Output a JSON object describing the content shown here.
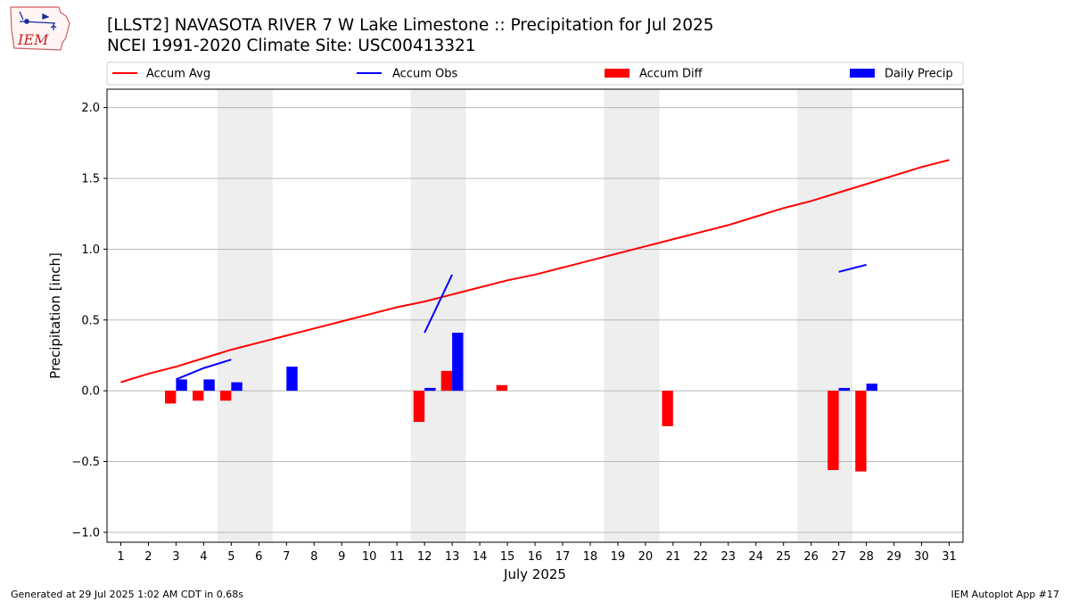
{
  "header": {
    "title_line1": "[LLST2] NAVASOTA RIVER 7 W Lake Limestone :: Precipitation for Jul 2025",
    "title_line2": "NCEI 1991-2020 Climate Site: USC00413321",
    "logo_text": "IEM"
  },
  "footer": {
    "generated": "Generated at 29 Jul 2025 1:02 AM CDT in 0.68s",
    "app": "IEM Autoplot App #17"
  },
  "colors": {
    "accum_avg": "#ff0000",
    "accum_obs": "#0000ff",
    "accum_diff": "#ff0000",
    "daily_precip": "#0000ff",
    "weekend_shade": "#eeeeee",
    "grid": "#b0b0b0"
  },
  "chart_data": {
    "type": "bar",
    "title": "[LLST2] NAVASOTA RIVER 7 W Lake Limestone :: Precipitation for Jul 2025",
    "subtitle": "NCEI 1991-2020 Climate Site: USC00413321",
    "xlabel": "July 2025",
    "ylabel": "Precipitation [inch]",
    "xlim": [
      0.5,
      31.5
    ],
    "ylim": [
      -1.07,
      2.13
    ],
    "yticks": [
      -1.0,
      -0.5,
      0.0,
      0.5,
      1.0,
      1.5,
      2.0
    ],
    "ytick_labels": [
      "−1.0",
      "−0.5",
      "0.0",
      "0.5",
      "1.0",
      "1.5",
      "2.0"
    ],
    "xticks": [
      1,
      2,
      3,
      4,
      5,
      6,
      7,
      8,
      9,
      10,
      11,
      12,
      13,
      14,
      15,
      16,
      17,
      18,
      19,
      20,
      21,
      22,
      23,
      24,
      25,
      26,
      27,
      28,
      29,
      30,
      31
    ],
    "grid": "y",
    "legend_placement": "top",
    "weekend_spans": [
      [
        4.5,
        6.5
      ],
      [
        11.5,
        13.5
      ],
      [
        18.5,
        20.5
      ],
      [
        25.5,
        27.5
      ]
    ],
    "legend": [
      "Accum Avg",
      "Accum Obs",
      "Accum Diff",
      "Daily Precip"
    ],
    "series": [
      {
        "name": "Accum Avg",
        "kind": "line",
        "x": [
          1,
          2,
          3,
          4,
          5,
          6,
          7,
          8,
          9,
          10,
          11,
          12,
          13,
          14,
          15,
          16,
          17,
          18,
          19,
          20,
          21,
          22,
          23,
          24,
          25,
          26,
          27,
          28,
          29,
          30,
          31
        ],
        "values": [
          0.06,
          0.12,
          0.17,
          0.23,
          0.29,
          0.34,
          0.39,
          0.44,
          0.49,
          0.54,
          0.59,
          0.63,
          0.68,
          0.73,
          0.78,
          0.82,
          0.87,
          0.92,
          0.97,
          1.02,
          1.07,
          1.12,
          1.17,
          1.23,
          1.29,
          1.34,
          1.4,
          1.46,
          1.52,
          1.58,
          1.63
        ]
      },
      {
        "name": "Accum Obs",
        "kind": "line",
        "segments": [
          {
            "x": [
              3,
              4,
              5
            ],
            "values": [
              0.08,
              0.16,
              0.22
            ]
          },
          {
            "x": [
              12,
              13
            ],
            "values": [
              0.41,
              0.82
            ]
          },
          {
            "x": [
              27,
              28
            ],
            "values": [
              0.84,
              0.89
            ]
          }
        ]
      },
      {
        "name": "Accum Diff",
        "kind": "bar",
        "x": [
          3,
          4,
          5,
          12,
          13,
          15,
          21,
          27,
          28
        ],
        "values": [
          -0.09,
          -0.07,
          -0.07,
          -0.22,
          0.14,
          0.04,
          -0.25,
          -0.56,
          -0.57
        ]
      },
      {
        "name": "Daily Precip",
        "kind": "bar",
        "x": [
          3,
          4,
          5,
          7,
          12,
          13,
          27,
          28
        ],
        "values": [
          0.08,
          0.08,
          0.06,
          0.17,
          0.02,
          0.41,
          0.02,
          0.05
        ]
      }
    ]
  }
}
